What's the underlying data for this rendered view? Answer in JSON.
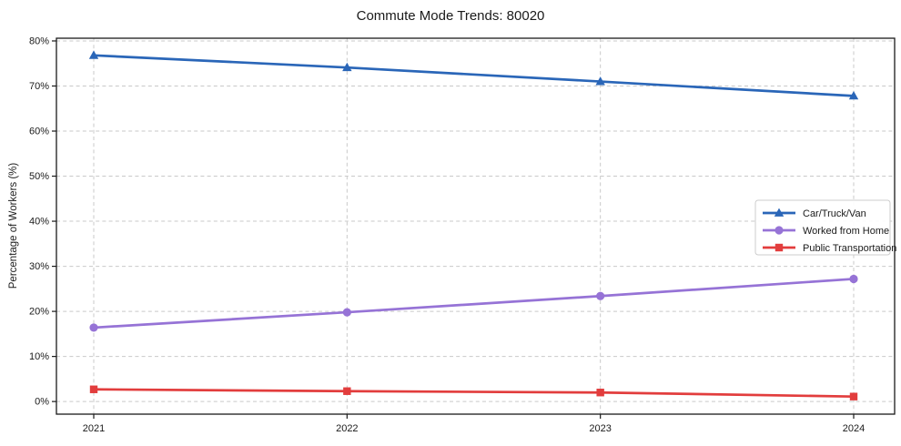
{
  "title": "Commute Mode Trends: 80020",
  "chart_data": {
    "type": "line",
    "title": "Commute Mode Trends: 80020",
    "xlabel": "",
    "ylabel": "Percentage of Workers (%)",
    "x": [
      "2021",
      "2022",
      "2023",
      "2024"
    ],
    "y_ticks": [
      0,
      10,
      20,
      30,
      40,
      50,
      60,
      70,
      80
    ],
    "y_tick_suffix": "%",
    "ylim": [
      -2.8,
      80.6
    ],
    "grid": true,
    "legend_position": "center-right",
    "series": [
      {
        "name": "Car/Truck/Van",
        "marker": "triangle",
        "color": "#2a66b8",
        "values": [
          76.8,
          74.1,
          71.0,
          67.8
        ]
      },
      {
        "name": "Worked from Home",
        "marker": "circle",
        "color": "#9673d6",
        "values": [
          16.4,
          19.8,
          23.4,
          27.2
        ]
      },
      {
        "name": "Public Transportation",
        "marker": "square",
        "color": "#e23d3d",
        "values": [
          2.7,
          2.3,
          2.0,
          1.1
        ]
      }
    ]
  }
}
